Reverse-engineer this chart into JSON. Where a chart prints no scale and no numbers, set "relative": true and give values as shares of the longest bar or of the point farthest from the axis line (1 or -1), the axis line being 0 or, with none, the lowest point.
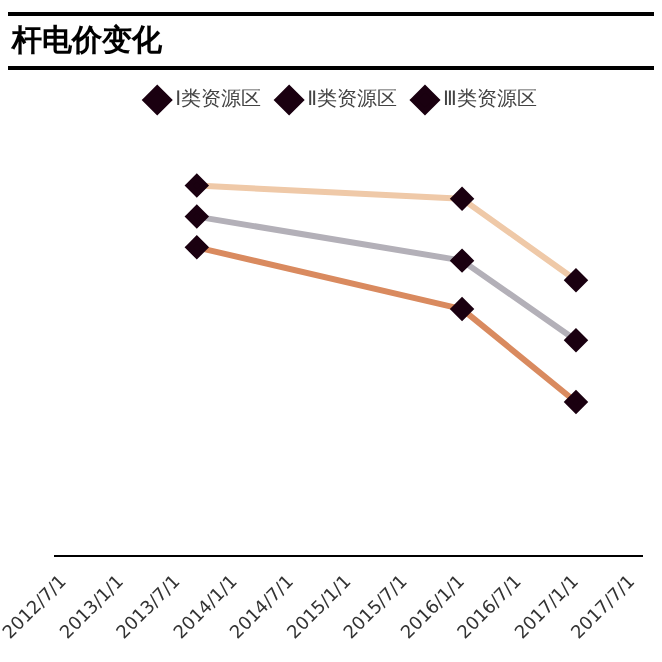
{
  "chart_data": {
    "type": "line",
    "title": "杆电价变化",
    "relative": true,
    "x": [
      "2013-09-01",
      "2016-01-01",
      "2017-01-01"
    ],
    "series": [
      {
        "name": "Ⅰ类资源区",
        "color": "#d98a5f",
        "values": [
          0.833,
          0.666,
          0.415
        ]
      },
      {
        "name": "Ⅱ类资源区",
        "color": "#b3b0b8",
        "values": [
          0.916,
          0.797,
          0.582
        ]
      },
      {
        "name": "Ⅲ类资源区",
        "color": "#efc9a8",
        "values": [
          1,
          0.964,
          0.744
        ]
      }
    ],
    "xlim": [
      "2012-06-01",
      "2017-08-01"
    ],
    "xticks": [
      {
        "value": "2012-07-01",
        "label": "2012/7/1"
      },
      {
        "value": "2013-01-01",
        "label": "2013/1/1"
      },
      {
        "value": "2013-07-01",
        "label": "2013/7/1"
      },
      {
        "value": "2014-01-01",
        "label": "2014/1/1"
      },
      {
        "value": "2014-07-01",
        "label": "2014/7/1"
      },
      {
        "value": "2015-01-01",
        "label": "2015/1/1"
      },
      {
        "value": "2015-07-01",
        "label": "2015/7/1"
      },
      {
        "value": "2016-01-01",
        "label": "2016/1/1"
      },
      {
        "value": "2016-07-01",
        "label": "2016/7/1"
      },
      {
        "value": "2017-01-01",
        "label": "2017/1/1"
      },
      {
        "value": "2017-07-01",
        "label": "2017/7/1"
      }
    ],
    "grid": false,
    "legend": "top",
    "marker": "diamond",
    "line_style": "solid"
  }
}
